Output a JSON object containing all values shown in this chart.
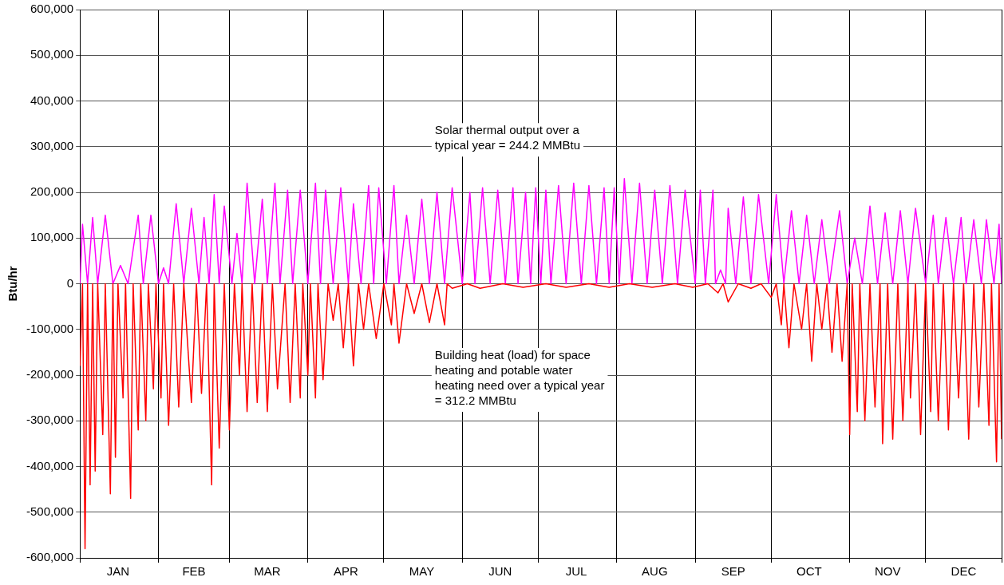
{
  "chart_data": {
    "type": "line",
    "ylabel": "Btu/hr",
    "xlim": [
      "--01-01",
      "--12-31"
    ],
    "xticks": [
      {
        "value": "--01-01",
        "label": null
      },
      {
        "value": "--01-16",
        "label": "JAN"
      },
      {
        "value": "--02-01",
        "label": null
      },
      {
        "value": "--02-15",
        "label": "FEB"
      },
      {
        "value": "--03-01",
        "label": null
      },
      {
        "value": "--03-16",
        "label": "MAR"
      },
      {
        "value": "--04-01",
        "label": null
      },
      {
        "value": "--04-16",
        "label": "APR"
      },
      {
        "value": "--05-01",
        "label": null
      },
      {
        "value": "--05-16",
        "label": "MAY"
      },
      {
        "value": "--06-01",
        "label": null
      },
      {
        "value": "--06-16",
        "label": "JUN"
      },
      {
        "value": "--07-01",
        "label": null
      },
      {
        "value": "--07-16",
        "label": "JUL"
      },
      {
        "value": "--08-01",
        "label": null
      },
      {
        "value": "--08-16",
        "label": "AUG"
      },
      {
        "value": "--09-01",
        "label": null
      },
      {
        "value": "--09-16",
        "label": "SEP"
      },
      {
        "value": "--10-01",
        "label": null
      },
      {
        "value": "--10-16",
        "label": "OCT"
      },
      {
        "value": "--11-01",
        "label": null
      },
      {
        "value": "--11-16",
        "label": "NOV"
      },
      {
        "value": "--12-01",
        "label": null
      },
      {
        "value": "--12-16",
        "label": "DEC"
      },
      {
        "value": "--12-31",
        "label": null
      }
    ],
    "ylim": [
      -600000,
      600000
    ],
    "yticks": [
      {
        "value": -600000,
        "label": "-600,000"
      },
      {
        "value": -500000,
        "label": "-500,000"
      },
      {
        "value": -400000,
        "label": "-400,000"
      },
      {
        "value": -300000,
        "label": "-300,000"
      },
      {
        "value": -200000,
        "label": "-200,000"
      },
      {
        "value": -100000,
        "label": "-100,000"
      },
      0,
      {
        "value": 100000,
        "label": "100,000"
      },
      {
        "value": 200000,
        "label": "200,000"
      },
      {
        "value": 300000,
        "label": "300,000"
      },
      {
        "value": 400000,
        "label": "400,000"
      },
      {
        "value": 500000,
        "label": "500,000"
      },
      {
        "value": 600000,
        "label": "600,000"
      }
    ],
    "grid": true,
    "legend": false,
    "marker": "none",
    "line_style": "solid",
    "annotations": [
      "Solar thermal output over a\ntypical year = 244.2 MMBtu",
      "Building heat (load) for space\nheating and potable water\nheating need over a typical year\n= 312.2 MMBtu"
    ],
    "series": [
      {
        "color": "#ff0000",
        "x": [
          "--01-01",
          "--01-02",
          "--01-03",
          "--01-04",
          "--01-05",
          "--01-06",
          "--01-07",
          "--01-08",
          "--01-10",
          "--01-11",
          "--01-13",
          "--01-14",
          "--01-15",
          "--01-16",
          "--01-18",
          "--01-19",
          "--01-21",
          "--01-22",
          "--01-24",
          "--01-25",
          "--01-27",
          "--01-28",
          "--01-30",
          "--01-31",
          "--02-02",
          "--02-03",
          "--02-05",
          "--02-07",
          "--02-09",
          "--02-11",
          "--02-14",
          "--02-16",
          "--02-18",
          "--02-20",
          "--02-22",
          "--02-23",
          "--02-25",
          "--02-27",
          "--03-01",
          "--03-03",
          "--03-05",
          "--03-06",
          "--03-08",
          "--03-10",
          "--03-12",
          "--03-14",
          "--03-16",
          "--03-18",
          "--03-20",
          "--03-23",
          "--03-25",
          "--03-27",
          "--03-29",
          "--03-30",
          "--04-01",
          "--04-02",
          "--04-04",
          "--04-05",
          "--04-07",
          "--04-09",
          "--04-11",
          "--04-13",
          "--04-15",
          "--04-17",
          "--04-19",
          "--04-21",
          "--04-23",
          "--04-25",
          "--04-28",
          "--05-01",
          "--05-04",
          "--05-05",
          "--05-07",
          "--05-10",
          "--05-13",
          "--05-16",
          "--05-19",
          "--05-22",
          "--05-25",
          "--05-26",
          "--05-28",
          "--06-03",
          "--06-08",
          "--06-17",
          "--06-25",
          "--07-04",
          "--07-12",
          "--07-21",
          "--07-29",
          "--08-06",
          "--08-15",
          "--08-24",
          "--08-31",
          "--09-06",
          "--09-10",
          "--09-12",
          "--09-14",
          "--09-18",
          "--09-23",
          "--09-27",
          "--10-01",
          "--10-03",
          "--10-05",
          "--10-06",
          "--10-08",
          "--10-10",
          "--10-13",
          "--10-15",
          "--10-17",
          "--10-19",
          "--10-21",
          "--10-23",
          "--10-25",
          "--10-27",
          "--10-29",
          "--10-31",
          "--11-01",
          "--11-02",
          "--11-04",
          "--11-05",
          "--11-07",
          "--11-09",
          "--11-11",
          "--11-13",
          "--11-14",
          "--11-16",
          "--11-18",
          "--11-20",
          "--11-22",
          "--11-24",
          "--11-25",
          "--11-27",
          "--11-29",
          "--12-01",
          "--12-03",
          "--12-04",
          "--12-06",
          "--12-08",
          "--12-10",
          "--12-12",
          "--12-14",
          "--12-16",
          "--12-18",
          "--12-20",
          "--12-22",
          "--12-24",
          "--12-26",
          "--12-27",
          "--12-29",
          "--12-30",
          "--12-31"
        ],
        "values": [
          -180000,
          0,
          -580000,
          0,
          -440000,
          0,
          -410000,
          0,
          -330000,
          0,
          -460000,
          0,
          -380000,
          0,
          -250000,
          0,
          -470000,
          0,
          -320000,
          0,
          -300000,
          0,
          -230000,
          0,
          -250000,
          0,
          -310000,
          0,
          -270000,
          0,
          -260000,
          0,
          -240000,
          0,
          -440000,
          0,
          -360000,
          0,
          -320000,
          0,
          -200000,
          0,
          -280000,
          0,
          -260000,
          0,
          -280000,
          0,
          -230000,
          0,
          -260000,
          0,
          -250000,
          0,
          -200000,
          0,
          -250000,
          0,
          -210000,
          0,
          -80000,
          0,
          -140000,
          0,
          -180000,
          0,
          -100000,
          0,
          -120000,
          0,
          -90000,
          0,
          -130000,
          0,
          -65000,
          0,
          -85000,
          0,
          -90000,
          0,
          -10000,
          0,
          -10000,
          0,
          -8000,
          0,
          -8000,
          0,
          -8000,
          0,
          -8000,
          0,
          -8000,
          0,
          -20000,
          0,
          -40000,
          0,
          -10000,
          0,
          -30000,
          0,
          -90000,
          0,
          -140000,
          0,
          -100000,
          0,
          -170000,
          0,
          -100000,
          0,
          -150000,
          0,
          -170000,
          0,
          -330000,
          0,
          -280000,
          0,
          -300000,
          0,
          -270000,
          0,
          -350000,
          0,
          -340000,
          0,
          -300000,
          0,
          -250000,
          0,
          -330000,
          0,
          -280000,
          0,
          -300000,
          0,
          -320000,
          0,
          -250000,
          0,
          -340000,
          0,
          -270000,
          0,
          -310000,
          0,
          -390000,
          0,
          -340000
        ]
      },
      {
        "color": "#ff00ff",
        "x": [
          "--01-01",
          "--01-02",
          "--01-04",
          "--01-06",
          "--01-08",
          "--01-11",
          "--01-14",
          "--01-17",
          "--01-20",
          "--01-24",
          "--01-26",
          "--01-29",
          "--02-01",
          "--02-03",
          "--02-05",
          "--02-08",
          "--02-11",
          "--02-14",
          "--02-17",
          "--02-19",
          "--02-21",
          "--02-23",
          "--02-25",
          "--02-27",
          "--03-02",
          "--03-04",
          "--03-06",
          "--03-08",
          "--03-11",
          "--03-14",
          "--03-16",
          "--03-19",
          "--03-21",
          "--03-24",
          "--03-26",
          "--03-29",
          "--04-01",
          "--04-04",
          "--04-06",
          "--04-08",
          "--04-11",
          "--04-14",
          "--04-17",
          "--04-19",
          "--04-22",
          "--04-25",
          "--04-27",
          "--04-29",
          "--05-02",
          "--05-05",
          "--05-07",
          "--05-10",
          "--05-13",
          "--05-16",
          "--05-19",
          "--05-22",
          "--05-25",
          "--05-28",
          "--06-01",
          "--06-04",
          "--06-06",
          "--06-09",
          "--06-12",
          "--06-15",
          "--06-18",
          "--06-21",
          "--06-23",
          "--06-26",
          "--06-28",
          "--06-30",
          "--07-02",
          "--07-04",
          "--07-06",
          "--07-09",
          "--07-12",
          "--07-15",
          "--07-18",
          "--07-21",
          "--07-24",
          "--07-27",
          "--07-29",
          "--07-31",
          "--08-02",
          "--08-04",
          "--08-07",
          "--08-10",
          "--08-13",
          "--08-16",
          "--08-19",
          "--08-22",
          "--08-25",
          "--08-28",
          "--09-01",
          "--09-03",
          "--09-05",
          "--09-08",
          "--09-09",
          "--09-11",
          "--09-13",
          "--09-14",
          "--09-17",
          "--09-20",
          "--09-23",
          "--09-26",
          "--09-30",
          "--10-03",
          "--10-06",
          "--10-09",
          "--10-12",
          "--10-15",
          "--10-18",
          "--10-21",
          "--10-24",
          "--10-28",
          "--10-31",
          "--11-03",
          "--11-06",
          "--11-09",
          "--11-12",
          "--11-15",
          "--11-18",
          "--11-21",
          "--11-24",
          "--11-27",
          "--12-01",
          "--12-04",
          "--12-06",
          "--12-09",
          "--12-12",
          "--12-15",
          "--12-17",
          "--12-20",
          "--12-23",
          "--12-25",
          "--12-28",
          "--12-30",
          "--12-31"
        ],
        "values": [
          0,
          130000,
          0,
          145000,
          0,
          150000,
          0,
          40000,
          0,
          150000,
          0,
          150000,
          0,
          35000,
          0,
          175000,
          0,
          165000,
          0,
          145000,
          0,
          195000,
          0,
          170000,
          0,
          110000,
          0,
          220000,
          0,
          185000,
          0,
          220000,
          0,
          205000,
          0,
          205000,
          0,
          220000,
          0,
          205000,
          0,
          210000,
          0,
          175000,
          0,
          215000,
          0,
          210000,
          0,
          215000,
          0,
          150000,
          0,
          185000,
          0,
          200000,
          0,
          210000,
          0,
          200000,
          0,
          210000,
          0,
          205000,
          0,
          210000,
          0,
          200000,
          0,
          210000,
          0,
          205000,
          0,
          215000,
          0,
          220000,
          0,
          215000,
          0,
          210000,
          0,
          210000,
          0,
          230000,
          0,
          220000,
          0,
          205000,
          0,
          215000,
          0,
          205000,
          0,
          205000,
          0,
          205000,
          0,
          30000,
          0,
          165000,
          0,
          190000,
          0,
          195000,
          0,
          195000,
          0,
          160000,
          0,
          150000,
          0,
          140000,
          0,
          160000,
          0,
          100000,
          0,
          170000,
          0,
          155000,
          0,
          160000,
          0,
          165000,
          0,
          150000,
          0,
          145000,
          0,
          145000,
          0,
          140000,
          0,
          140000,
          0,
          130000,
          0
        ]
      }
    ]
  }
}
